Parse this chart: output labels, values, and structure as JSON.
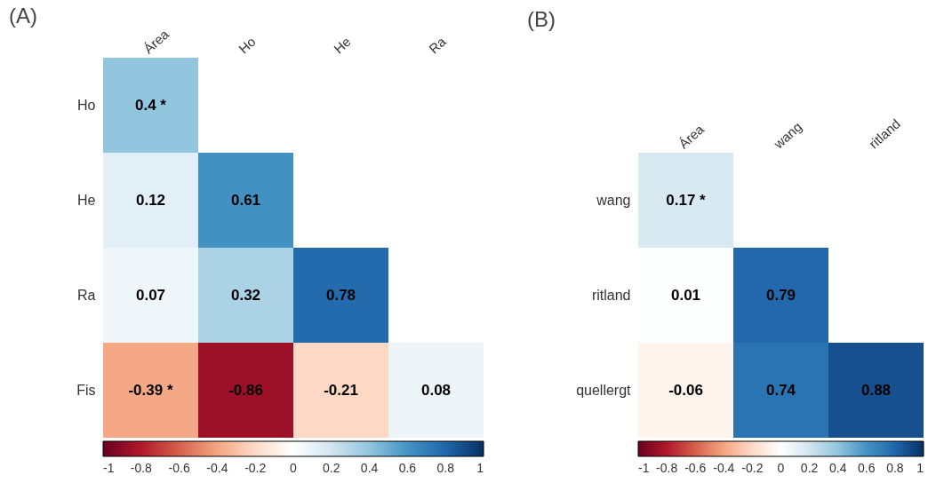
{
  "chart_data": [
    {
      "type": "heatmap",
      "title": "(A)",
      "categories": [
        "Área",
        "Ho",
        "He",
        "Ra"
      ],
      "y_categories": [
        "Ho",
        "He",
        "Ra",
        "Fis"
      ],
      "cells": [
        [
          0.4,
          null,
          null,
          null
        ],
        [
          0.12,
          0.61,
          null,
          null
        ],
        [
          0.07,
          0.32,
          0.78,
          null
        ],
        [
          -0.39,
          -0.86,
          -0.21,
          0.08
        ]
      ],
      "cell_labels": [
        [
          "0.4 *",
          null,
          null,
          null
        ],
        [
          "0.12",
          "0.61",
          null,
          null
        ],
        [
          "0.07",
          "0.32",
          "0.78",
          null
        ],
        [
          "-0.39 *",
          "-0.86",
          "-0.21",
          "0.08"
        ]
      ],
      "clim": [
        -1,
        1
      ],
      "cticks": [
        -1,
        -0.8,
        -0.6,
        -0.4,
        -0.2,
        0,
        0.2,
        0.4,
        0.6,
        0.8,
        1
      ]
    },
    {
      "type": "heatmap",
      "title": "(B)",
      "categories": [
        "Área",
        "wang",
        "ritland"
      ],
      "y_categories": [
        "wang",
        "ritland",
        "quellergt"
      ],
      "cells": [
        [
          0.17,
          null,
          null
        ],
        [
          0.01,
          0.79,
          null
        ],
        [
          -0.06,
          0.74,
          0.88
        ]
      ],
      "cell_labels": [
        [
          "0.17 *",
          null,
          null
        ],
        [
          "0.01",
          "0.79",
          null
        ],
        [
          "-0.06",
          "0.74",
          "0.88"
        ]
      ],
      "clim": [
        -1,
        1
      ],
      "cticks": [
        -1,
        -0.8,
        -0.6,
        -0.4,
        -0.2,
        0,
        0.2,
        0.4,
        0.6,
        0.8,
        1
      ]
    }
  ]
}
